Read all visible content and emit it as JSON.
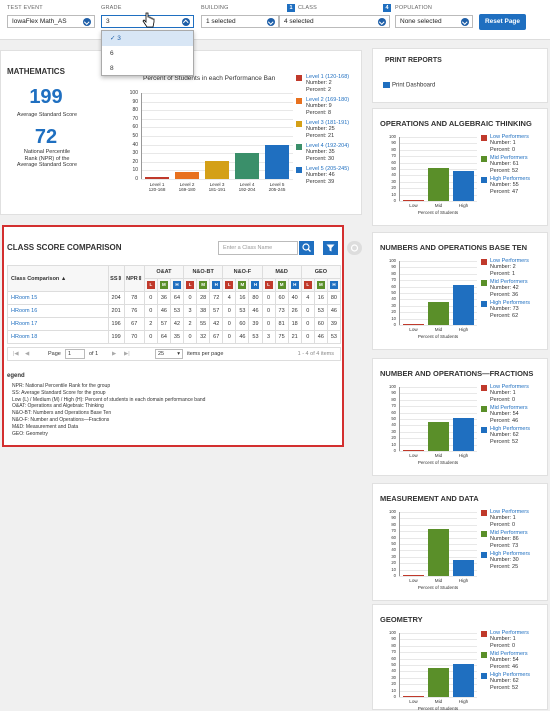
{
  "filters": {
    "test_event": {
      "label": "TEST EVENT",
      "value": "IowaFlex Math_AS"
    },
    "grade": {
      "label": "GRADE",
      "value": "3",
      "options": [
        "3",
        "6",
        "8"
      ],
      "selected": "3"
    },
    "building": {
      "label": "BUILDING",
      "value": "1 selected"
    },
    "class": {
      "label": "CLASS",
      "badge": "1",
      "value": "4 selected"
    },
    "population": {
      "label": "POPULATION",
      "badge": "4",
      "value": "None selected"
    },
    "reset": "Reset Page"
  },
  "math": {
    "title": "MATHEMATICS",
    "avg_score": "199",
    "avg_label": "Average Standard Score",
    "npr": "72",
    "npr_label": [
      "National Percentile",
      "Rank (NPR) of the",
      "Average Standard Score"
    ],
    "chart_title": "Percent of Students in each Performance Ban",
    "yticks": [
      "100",
      "90",
      "80",
      "70",
      "60",
      "50",
      "40",
      "30",
      "20",
      "10",
      "0"
    ],
    "levels": [
      {
        "name": "Level 1 (120-168)",
        "number": "Number: 2",
        "percent": "Percent: 2",
        "x1": "Level 1",
        "x2": "120-168",
        "color": "#c0392b"
      },
      {
        "name": "Level 2 (169-180)",
        "number": "Number: 9",
        "percent": "Percent: 8",
        "x1": "Level 2",
        "x2": "169-180",
        "color": "#e8711e"
      },
      {
        "name": "Level 3 (181-191)",
        "number": "Number: 25",
        "percent": "Percent: 21",
        "x1": "Level 3",
        "x2": "181-191",
        "color": "#d4a017"
      },
      {
        "name": "Level 4 (192-204)",
        "number": "Number: 35",
        "percent": "Percent: 30",
        "x1": "Level 4",
        "x2": "192-204",
        "color": "#3a8f6a"
      },
      {
        "name": "Level 5 (205-245)",
        "number": "Number: 46",
        "percent": "Percent: 39",
        "x1": "Level 5",
        "x2": "205-245",
        "color": "#1f6fc0"
      }
    ]
  },
  "chart_data": {
    "type": "bar",
    "categories": [
      "Level 1 120-168",
      "Level 2 169-180",
      "Level 3 181-191",
      "Level 4 192-204",
      "Level 5 205-245"
    ],
    "values": [
      2,
      8,
      21,
      30,
      39
    ],
    "title": "Percent of Students in each Performance Ban",
    "ylim": [
      0,
      100
    ]
  },
  "class_cmp": {
    "title": "CLASS SCORE COMPARISON",
    "search_placeholder": "Enter a Class Name",
    "headers": {
      "cmp": "Class Comparison",
      "ss": "SS",
      "npr": "NPR",
      "oat": "O&AT",
      "nbt": "N&O-BT",
      "nof": "N&O-F",
      "md": "M&D",
      "geo": "GEO"
    },
    "lmh": [
      "L",
      "M",
      "H"
    ],
    "rows": [
      {
        "name": "HRoom 15",
        "vals": [
          "204",
          "78",
          "0",
          "36",
          "64",
          "0",
          "28",
          "72",
          "4",
          "16",
          "80",
          "0",
          "60",
          "40",
          "4",
          "16",
          "80"
        ]
      },
      {
        "name": "HRoom 16",
        "vals": [
          "201",
          "76",
          "0",
          "46",
          "53",
          "3",
          "38",
          "57",
          "0",
          "53",
          "46",
          "0",
          "73",
          "26",
          "0",
          "53",
          "46"
        ]
      },
      {
        "name": "HRoom 17",
        "vals": [
          "196",
          "67",
          "2",
          "57",
          "42",
          "2",
          "55",
          "42",
          "0",
          "60",
          "39",
          "0",
          "81",
          "18",
          "0",
          "60",
          "39"
        ]
      },
      {
        "name": "HRoom 18",
        "vals": [
          "199",
          "70",
          "0",
          "64",
          "35",
          "0",
          "32",
          "67",
          "0",
          "46",
          "53",
          "3",
          "75",
          "21",
          "0",
          "46",
          "53"
        ]
      }
    ],
    "page_label": "Page",
    "page_val": "1",
    "of_label": "of 1",
    "per_page": "25",
    "per_page_label": "items per page",
    "range": "1 - 4 of 4 items",
    "legend_title": "egend",
    "legend_lines": [
      "NPR: National Percentile Rank for the group",
      "SS: Average Standard Score for the group",
      "Low (L) / Medium (M) / High (H): Percent of students in each domain performance band",
      "O&AT: Operations and Algebraic Thinking",
      "N&O-BT: Numbers and Operations Base Ten",
      "N&O-F: Number and Operations—Fractions",
      "M&D: Measurement and Data",
      "GEO: Geometry"
    ]
  },
  "print": {
    "title": "PRINT REPORTS",
    "dashboard": "Print Dashboard"
  },
  "domains": [
    {
      "title": "OPERATIONS AND ALGEBRAIC THINKING",
      "low": [
        "Low Performers",
        "Number: 1",
        "Percent: 0"
      ],
      "mid": [
        "Mid Performers",
        "Number: 61",
        "Percent: 52"
      ],
      "high": [
        "High Performers",
        "Number: 55",
        "Percent: 47"
      ],
      "values": [
        0,
        52,
        47
      ]
    },
    {
      "title": "NUMBERS AND OPERATIONS BASE TEN",
      "low": [
        "Low Performers",
        "Number: 2",
        "Percent: 1"
      ],
      "mid": [
        "Mid Performers",
        "Number: 42",
        "Percent: 36"
      ],
      "high": [
        "High Performers",
        "Number: 73",
        "Percent: 62"
      ],
      "values": [
        1,
        36,
        62
      ]
    },
    {
      "title": "NUMBER AND OPERATIONS—FRACTIONS",
      "low": [
        "Low Performers",
        "Number: 1",
        "Percent: 0"
      ],
      "mid": [
        "Mid Performers",
        "Number: 54",
        "Percent: 46"
      ],
      "high": [
        "High Performers",
        "Number: 62",
        "Percent: 52"
      ],
      "values": [
        0,
        46,
        52
      ]
    },
    {
      "title": "MEASUREMENT AND DATA",
      "low": [
        "Low Performers",
        "Number: 1",
        "Percent: 0"
      ],
      "mid": [
        "Mid Performers",
        "Number: 86",
        "Percent: 73"
      ],
      "high": [
        "High Performers",
        "Number: 30",
        "Percent: 25"
      ],
      "values": [
        0,
        73,
        25
      ]
    },
    {
      "title": "GEOMETRY",
      "low": [
        "Low Performers",
        "Number: 1",
        "Percent: 0"
      ],
      "mid": [
        "Mid Performers",
        "Number: 54",
        "Percent: 46"
      ],
      "high": [
        "High Performers",
        "Number: 62",
        "Percent: 52"
      ],
      "values": [
        0,
        46,
        52
      ]
    }
  ],
  "domain_axis": {
    "yticks": [
      "100",
      "90",
      "80",
      "70",
      "60",
      "50",
      "40",
      "30",
      "20",
      "10",
      "0"
    ],
    "x": [
      "Low",
      "Mid",
      "High"
    ],
    "xlabel": "Percent of Students"
  },
  "colors": {
    "accent": "#1f6fc0",
    "low": "#c0392b",
    "mid": "#5a8f29",
    "high": "#1f6fc0",
    "highlight": "#d32f2f"
  }
}
